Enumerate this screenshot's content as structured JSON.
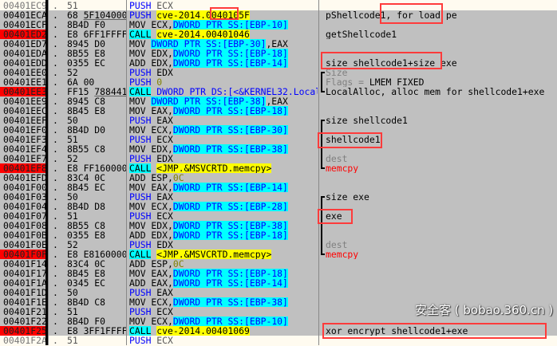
{
  "colors": {
    "selection": "#c0c0c0",
    "breakpoint": "#ff0000",
    "call_bg": "#00ffff",
    "symbol_bg": "#ffff00",
    "push": "#0000ff",
    "comment_red": "#ff0000",
    "highlight_box": "#ff3b3b"
  },
  "rows": [
    {
      "addr": "00401EC9",
      "hex": "51",
      "mnem": "PUSH",
      "mstyle": "push",
      "ops": [
        [
          " ECX",
          ""
        ]
      ],
      "sel": false
    },
    {
      "addr": "00401ECA",
      "hex": "68 ",
      "hexu": "5F104000",
      "mnem": "PUSH",
      "mstyle": "push",
      "ops": [
        [
          " ",
          ""
        ],
        [
          "cve-2014.0040105F",
          "sym"
        ]
      ],
      "comment": [
        [
          "pShellcode1, for load pe",
          ""
        ]
      ],
      "sel": true
    },
    {
      "addr": "00401ECF",
      "hex": "8B4D F0",
      "mnem": "MOV",
      "mstyle": "",
      "ops": [
        [
          " ECX,",
          ""
        ],
        [
          "DWORD PTR SS:[EBP-10]",
          "mem"
        ]
      ],
      "sel": true
    },
    {
      "addr": "00401ED2",
      "hex": "E8 6FF1FFFF",
      "mnem": "CALL",
      "mstyle": "call",
      "ops": [
        [
          " ",
          ""
        ],
        [
          "cve-2014.00401046",
          "sym"
        ]
      ],
      "bp": true,
      "comment": [
        [
          "getShellcode1",
          ""
        ]
      ],
      "sel": true
    },
    {
      "addr": "00401ED7",
      "hex": "8945 D0",
      "mnem": "MOV",
      "mstyle": "",
      "ops": [
        [
          " ",
          ""
        ],
        [
          "DWORD PTR SS:[EBP-30]",
          "mem"
        ],
        [
          ",EAX",
          ""
        ]
      ],
      "sel": true
    },
    {
      "addr": "00401EDA",
      "hex": "8B55 E8",
      "mnem": "MOV",
      "mstyle": "",
      "ops": [
        [
          " EDX,",
          ""
        ],
        [
          "DWORD PTR SS:[EBP-18]",
          "mem"
        ]
      ],
      "sel": true
    },
    {
      "addr": "00401EDD",
      "hex": "0355 EC",
      "mnem": "ADD",
      "mstyle": "",
      "ops": [
        [
          " EDX,",
          ""
        ],
        [
          "DWORD PTR SS:[EBP-14]",
          "mem"
        ]
      ],
      "comment": [
        [
          "size_shellcode1+size_exe",
          ""
        ]
      ],
      "sel": true
    },
    {
      "addr": "00401EE0",
      "hex": "52",
      "mnem": "PUSH",
      "mstyle": "push",
      "ops": [
        [
          " EDX",
          ""
        ]
      ],
      "comment": [
        [
          "Size",
          "gray"
        ]
      ],
      "sel": true
    },
    {
      "addr": "00401EE1",
      "hex": "6A 00",
      "mnem": "PUSH",
      "mstyle": "push",
      "ops": [
        [
          " ",
          ""
        ],
        [
          "0",
          "const"
        ]
      ],
      "comment": [
        [
          "Flags = ",
          "gray"
        ],
        [
          "LMEM_FIXED",
          ""
        ]
      ],
      "sel": true
    },
    {
      "addr": "00401EE3",
      "hex": "FF15 ",
      "hexu": "78844100",
      "mnem": "CALL",
      "mstyle": "call",
      "ops": [
        [
          " ",
          ""
        ],
        [
          "DWORD PTR DS:[<&KERNEL32.LocalAlloc>]",
          "ds"
        ]
      ],
      "bp": true,
      "comment": [
        [
          "LocalAlloc, alloc mem for shellcode1+exe",
          ""
        ]
      ],
      "sel": true
    },
    {
      "addr": "00401EE9",
      "hex": "8945 C8",
      "mnem": "MOV",
      "mstyle": "",
      "ops": [
        [
          " ",
          ""
        ],
        [
          "DWORD PTR SS:[EBP-38]",
          "mem"
        ],
        [
          ",EAX",
          ""
        ]
      ],
      "sel": true
    },
    {
      "addr": "00401EEC",
      "hex": "8B45 E8",
      "mnem": "MOV",
      "mstyle": "",
      "ops": [
        [
          " EAX,",
          ""
        ],
        [
          "DWORD PTR SS:[EBP-18]",
          "mem"
        ]
      ],
      "sel": true
    },
    {
      "addr": "00401EEF",
      "hex": "50",
      "mnem": "PUSH",
      "mstyle": "push",
      "ops": [
        [
          " EAX",
          ""
        ]
      ],
      "comment": [
        [
          "size_shellcode1",
          ""
        ]
      ],
      "sel": true
    },
    {
      "addr": "00401EF0",
      "hex": "8B4D D0",
      "mnem": "MOV",
      "mstyle": "",
      "ops": [
        [
          " ECX,",
          ""
        ],
        [
          "DWORD PTR SS:[EBP-30]",
          "mem"
        ]
      ],
      "sel": true
    },
    {
      "addr": "00401EF3",
      "hex": "51",
      "mnem": "PUSH",
      "mstyle": "push",
      "ops": [
        [
          " ECX",
          ""
        ]
      ],
      "comment": [
        [
          "shellcode1",
          ""
        ]
      ],
      "sel": true
    },
    {
      "addr": "00401EF4",
      "hex": "8B55 C8",
      "mnem": "MOV",
      "mstyle": "",
      "ops": [
        [
          " EDX,",
          ""
        ],
        [
          "DWORD PTR SS:[EBP-38]",
          "mem"
        ]
      ],
      "sel": true
    },
    {
      "addr": "00401EF7",
      "hex": "52",
      "mnem": "PUSH",
      "mstyle": "push",
      "ops": [
        [
          " EDX",
          ""
        ]
      ],
      "comment": [
        [
          "dest",
          "gray"
        ]
      ],
      "sel": true
    },
    {
      "addr": "00401EF8",
      "hex": "E8 FF160000",
      "mnem": "CALL",
      "mstyle": "call",
      "ops": [
        [
          " ",
          ""
        ],
        [
          "<JMP.&MSVCRTD.memcpy>",
          "sym"
        ]
      ],
      "bp": true,
      "comment": [
        [
          "memcpy",
          "red"
        ]
      ],
      "sel": true
    },
    {
      "addr": "00401EFD",
      "hex": "83C4 0C",
      "mnem": "ADD",
      "mstyle": "",
      "ops": [
        [
          " ESP,",
          ""
        ],
        [
          "0C",
          "const"
        ]
      ],
      "sel": true
    },
    {
      "addr": "00401F00",
      "hex": "8B45 EC",
      "mnem": "MOV",
      "mstyle": "",
      "ops": [
        [
          " EAX,",
          ""
        ],
        [
          "DWORD PTR SS:[EBP-14]",
          "mem"
        ]
      ],
      "sel": true
    },
    {
      "addr": "00401F03",
      "hex": "50",
      "mnem": "PUSH",
      "mstyle": "push",
      "ops": [
        [
          " EAX",
          ""
        ]
      ],
      "comment": [
        [
          "size_exe",
          ""
        ]
      ],
      "sel": true
    },
    {
      "addr": "00401F04",
      "hex": "8B4D D8",
      "mnem": "MOV",
      "mstyle": "",
      "ops": [
        [
          " ECX,",
          ""
        ],
        [
          "DWORD PTR SS:[EBP-28]",
          "mem"
        ]
      ],
      "sel": true
    },
    {
      "addr": "00401F07",
      "hex": "51",
      "mnem": "PUSH",
      "mstyle": "push",
      "ops": [
        [
          " ECX",
          ""
        ]
      ],
      "comment": [
        [
          "exe",
          ""
        ]
      ],
      "sel": true
    },
    {
      "addr": "00401F08",
      "hex": "8B55 C8",
      "mnem": "MOV",
      "mstyle": "",
      "ops": [
        [
          " EDX,",
          ""
        ],
        [
          "DWORD PTR SS:[EBP-38]",
          "mem"
        ]
      ],
      "sel": true
    },
    {
      "addr": "00401F0B",
      "hex": "0355 E8",
      "mnem": "ADD",
      "mstyle": "",
      "ops": [
        [
          " EDX,",
          ""
        ],
        [
          "DWORD PTR SS:[EBP-18]",
          "mem"
        ]
      ],
      "sel": true
    },
    {
      "addr": "00401F0E",
      "hex": "52",
      "mnem": "PUSH",
      "mstyle": "push",
      "ops": [
        [
          " EDX",
          ""
        ]
      ],
      "comment": [
        [
          "dest",
          "gray"
        ]
      ],
      "sel": true
    },
    {
      "addr": "00401F0F",
      "hex": "E8 E8160000",
      "mnem": "CALL",
      "mstyle": "call",
      "ops": [
        [
          " ",
          ""
        ],
        [
          "<JMP.&MSVCRTD.memcpy>",
          "sym"
        ]
      ],
      "bp": true,
      "comment": [
        [
          "memcpy",
          "red"
        ]
      ],
      "sel": true
    },
    {
      "addr": "00401F14",
      "hex": "83C4 0C",
      "mnem": "ADD",
      "mstyle": "",
      "ops": [
        [
          " ESP,",
          ""
        ],
        [
          "0C",
          "const"
        ]
      ],
      "sel": true
    },
    {
      "addr": "00401F17",
      "hex": "8B45 E8",
      "mnem": "MOV",
      "mstyle": "",
      "ops": [
        [
          " EAX,",
          ""
        ],
        [
          "DWORD PTR SS:[EBP-18]",
          "mem"
        ]
      ],
      "sel": true
    },
    {
      "addr": "00401F1A",
      "hex": "0345 EC",
      "mnem": "ADD",
      "mstyle": "",
      "ops": [
        [
          " EAX,",
          ""
        ],
        [
          "DWORD PTR SS:[EBP-14]",
          "mem"
        ]
      ],
      "sel": true
    },
    {
      "addr": "00401F1D",
      "hex": "50",
      "mnem": "PUSH",
      "mstyle": "push",
      "ops": [
        [
          " EAX",
          ""
        ]
      ],
      "sel": true
    },
    {
      "addr": "00401F1E",
      "hex": "8B4D C8",
      "mnem": "MOV",
      "mstyle": "",
      "ops": [
        [
          " ECX,",
          ""
        ],
        [
          "DWORD PTR SS:[EBP-38]",
          "mem"
        ]
      ],
      "sel": true
    },
    {
      "addr": "00401F21",
      "hex": "51",
      "mnem": "PUSH",
      "mstyle": "push",
      "ops": [
        [
          " ECX",
          ""
        ]
      ],
      "sel": true
    },
    {
      "addr": "00401F22",
      "hex": "8B4D F0",
      "mnem": "MOV",
      "mstyle": "",
      "ops": [
        [
          " ECX,",
          ""
        ],
        [
          "DWORD PTR SS:[EBP-10]",
          "mem"
        ]
      ],
      "sel": true
    },
    {
      "addr": "00401F25",
      "hex": "E8 3FF1FFFF",
      "mnem": "CALL",
      "mstyle": "call",
      "ops": [
        [
          " ",
          ""
        ],
        [
          "cve-2014.00401069",
          "sym"
        ]
      ],
      "bp": true,
      "comment": [
        [
          "xor encrypt shellcode1+exe",
          ""
        ]
      ],
      "sel": true
    },
    {
      "addr": "00401F2A",
      "hex": "51",
      "mnem": "PUSH",
      "mstyle": "push",
      "ops": [
        [
          " ECX",
          ""
        ]
      ],
      "sel": false
    }
  ],
  "watermark": "安全客 ( bobao.360.cn )"
}
